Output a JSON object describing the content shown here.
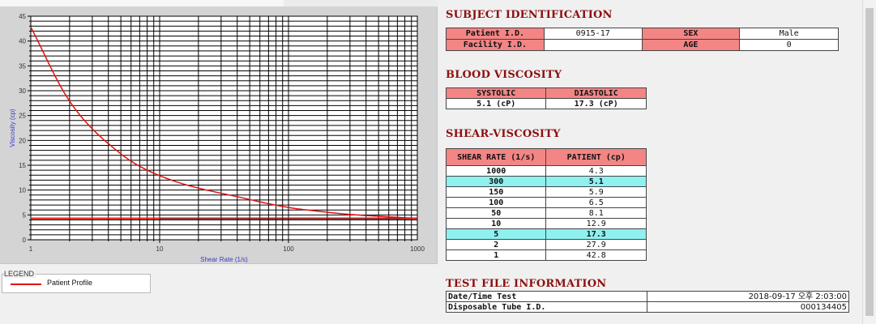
{
  "chart_data": {
    "type": "line",
    "title": "",
    "xlabel": "Shear Rate (1/s)",
    "ylabel": "Viscosity (cp)",
    "x_scale": "log",
    "xlim": [
      1,
      1000
    ],
    "ylim": [
      0,
      45
    ],
    "x_ticks": [
      "1",
      "10",
      "100",
      "1000"
    ],
    "y_ticks": [
      "0",
      "5",
      "10",
      "15",
      "20",
      "25",
      "30",
      "35",
      "40",
      "45"
    ],
    "grid": true,
    "series": [
      {
        "name": "Patient Profile",
        "color": "#e01010",
        "x": [
          1,
          2,
          5,
          10,
          50,
          100,
          150,
          300,
          1000
        ],
        "y": [
          42.8,
          27.9,
          17.3,
          12.9,
          8.1,
          6.5,
          5.9,
          5.1,
          4.3
        ]
      }
    ],
    "reference_lines": [
      {
        "y": 4.3,
        "color": "#e01010",
        "x_range": [
          1,
          10
        ]
      },
      {
        "y": 4.3,
        "color": "#8b1010",
        "x_range": [
          10,
          1000
        ]
      }
    ]
  },
  "legend": {
    "title": "LEGEND",
    "entries": [
      {
        "label": "Patient Profile",
        "color": "#e01010"
      }
    ]
  },
  "subject": {
    "title": "SUBJECT IDENTIFICATION",
    "patient_id_label": "Patient I.D.",
    "patient_id_value": "0915-17",
    "sex_label": "SEX",
    "sex_value": "Male",
    "facility_id_label": "Facility I.D.",
    "facility_id_value": "",
    "age_label": "AGE",
    "age_value": "0"
  },
  "blood_viscosity": {
    "title": "BLOOD VISCOSITY",
    "systolic_label": "SYSTOLIC",
    "diastolic_label": "DIASTOLIC",
    "systolic_value": "5.1 (cP)",
    "diastolic_value": "17.3 (cP)"
  },
  "shear_viscosity": {
    "title": "SHEAR-VISCOSITY",
    "rate_header": "SHEAR RATE (1/s)",
    "patient_header": "PATIENT (cp)",
    "rows": [
      {
        "rate": "1000",
        "patient": "4.3",
        "highlight": false
      },
      {
        "rate": "300",
        "patient": "5.1",
        "highlight": true
      },
      {
        "rate": "150",
        "patient": "5.9",
        "highlight": false
      },
      {
        "rate": "100",
        "patient": "6.5",
        "highlight": false
      },
      {
        "rate": "50",
        "patient": "8.1",
        "highlight": false
      },
      {
        "rate": "10",
        "patient": "12.9",
        "highlight": false
      },
      {
        "rate": "5",
        "patient": "17.3",
        "highlight": true
      },
      {
        "rate": "2",
        "patient": "27.9",
        "highlight": false
      },
      {
        "rate": "1",
        "patient": "42.8",
        "highlight": false
      }
    ],
    "highlight_color": "#8ff0f0"
  },
  "test_file": {
    "title": "TEST FILE INFORMATION",
    "date_label": "Date/Time Test",
    "date_value": "2018-09-17  오후 2:03:00",
    "tube_label": "Disposable Tube I.D.",
    "tube_value": "000134405"
  },
  "colors": {
    "header_fill": "#f38585",
    "section_title": "#8b1010",
    "curve": "#e01010"
  }
}
